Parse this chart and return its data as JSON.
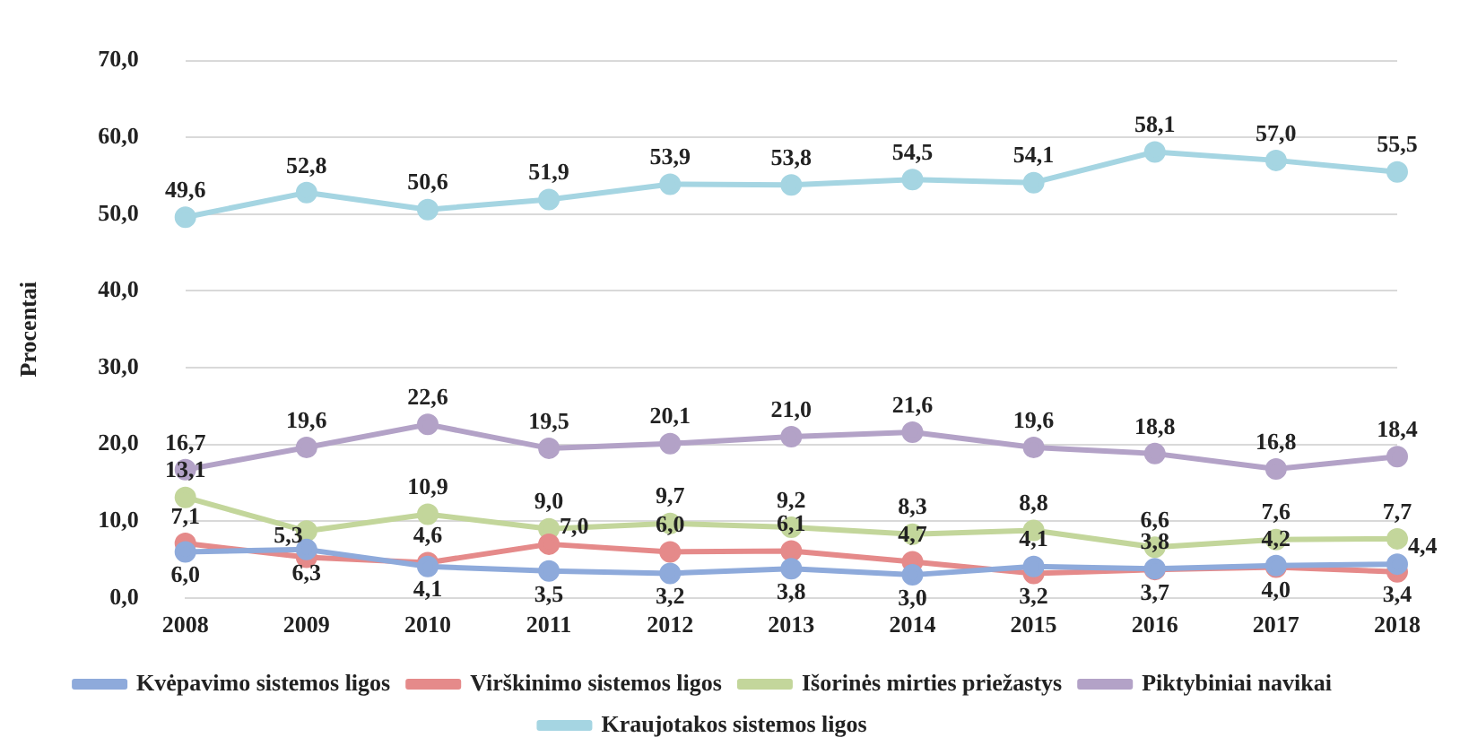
{
  "chart_data": {
    "type": "line",
    "ylabel": "Procentai",
    "categories": [
      "2008",
      "2009",
      "2010",
      "2011",
      "2012",
      "2013",
      "2014",
      "2015",
      "2016",
      "2017",
      "2018"
    ],
    "series": [
      {
        "name": "Kvėpavimo sistemos ligos",
        "color": "#8eaadb",
        "values": [
          6.0,
          6.3,
          4.1,
          3.5,
          3.2,
          3.8,
          3.0,
          4.1,
          3.8,
          4.2,
          4.4
        ],
        "value_labels": [
          "6,0",
          "6,3",
          "4,1",
          "3,5",
          "3,2",
          "3,8",
          "3,0",
          "4,1",
          "3,8",
          "4,2",
          "4,4"
        ]
      },
      {
        "name": "Virškinimo sistemos ligos",
        "color": "#e58a8a",
        "values": [
          7.1,
          5.3,
          4.6,
          7.0,
          6.0,
          6.1,
          4.7,
          3.2,
          3.7,
          4.0,
          3.4
        ],
        "value_labels": [
          "7,1",
          "5,3",
          "4,6",
          "7,0",
          "6,0",
          "6,1",
          "4,7",
          "3,2",
          "3,7",
          "4,0",
          "3,4"
        ]
      },
      {
        "name": "Išorinės mirties priežastys",
        "color": "#c3d69b",
        "values": [
          13.1,
          8.7,
          10.9,
          9.0,
          9.7,
          9.2,
          8.3,
          8.8,
          6.6,
          7.6,
          7.7
        ],
        "value_labels": [
          "13,1",
          null,
          "10,9",
          "9,0",
          "9,7",
          "9,2",
          "8,3",
          "8,8",
          "6,6",
          "7,6",
          "7,7"
        ]
      },
      {
        "name": "Piktybiniai navikai",
        "color": "#b3a2c7",
        "values": [
          16.7,
          19.6,
          22.6,
          19.5,
          20.1,
          21.0,
          21.6,
          19.6,
          18.8,
          16.8,
          18.4
        ],
        "value_labels": [
          "16,7",
          "19,6",
          "22,6",
          "19,5",
          "20,1",
          "21,0",
          "21,6",
          "19,6",
          "18,8",
          "16,8",
          "18,4"
        ]
      },
      {
        "name": "Kraujotakos sistemos ligos",
        "color": "#a5d5e2",
        "values": [
          49.6,
          52.8,
          50.6,
          51.9,
          53.9,
          53.8,
          54.5,
          54.1,
          58.1,
          57.0,
          55.5
        ],
        "value_labels": [
          "49,6",
          "52,8",
          "50,6",
          "51,9",
          "53,9",
          "53,8",
          "54,5",
          "54,1",
          "58,1",
          "57,0",
          "55,5"
        ]
      }
    ],
    "ylim": [
      0,
      70
    ],
    "yticks": [
      {
        "value": 0,
        "label": "0,0"
      },
      {
        "value": 10,
        "label": "10,0"
      },
      {
        "value": 20,
        "label": "20,0"
      },
      {
        "value": 30,
        "label": "30,0"
      },
      {
        "value": 40,
        "label": "40,0"
      },
      {
        "value": 50,
        "label": "50,0"
      },
      {
        "value": 60,
        "label": "60,0"
      },
      {
        "value": 70,
        "label": "70,0"
      }
    ],
    "grid": "y",
    "legend": "bottom",
    "marker": "circle",
    "line_style": "solid"
  }
}
